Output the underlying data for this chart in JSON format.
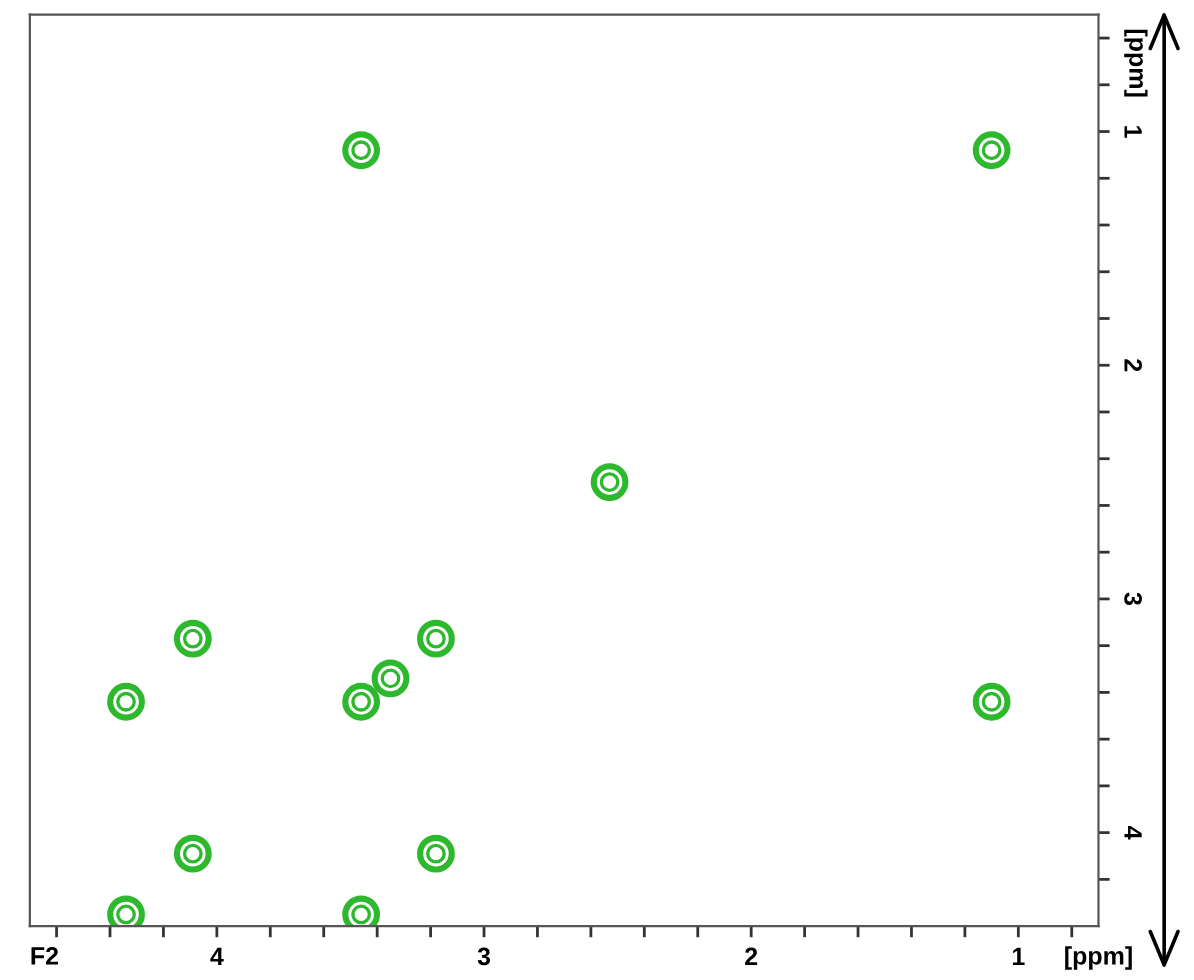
{
  "chart_data": {
    "type": "scatter",
    "xlabel": "[ppm]",
    "ylabel": "[ppm]",
    "annotations": [
      "F2"
    ],
    "x": [
      3.46,
      1.1,
      2.53,
      4.09,
      3.18,
      3.35,
      4.34,
      3.46,
      1.1,
      4.09,
      3.18,
      4.34,
      3.46
    ],
    "series": [
      {
        "color": "#2eb82e",
        "values": [
          1.08,
          1.08,
          2.5,
          3.17,
          3.17,
          3.34,
          3.44,
          3.44,
          3.44,
          4.09,
          4.09,
          4.35,
          4.35
        ]
      }
    ],
    "xlim": [
      4.7,
      0.7
    ],
    "ylim": [
      4.4,
      0.5
    ],
    "xticks": [
      {
        "value": 4.6,
        "label": null
      },
      {
        "value": 4.4,
        "label": null
      },
      {
        "value": 4.2,
        "label": null
      },
      4,
      {
        "value": 3.8,
        "label": null
      },
      {
        "value": 3.6,
        "label": null
      },
      {
        "value": 3.4,
        "label": null
      },
      {
        "value": 3.2,
        "label": null
      },
      3,
      {
        "value": 2.8,
        "label": null
      },
      {
        "value": 2.6,
        "label": null
      },
      {
        "value": 2.4,
        "label": null
      },
      {
        "value": 2.2,
        "label": null
      },
      2,
      {
        "value": 1.8,
        "label": null
      },
      {
        "value": 1.6,
        "label": null
      },
      {
        "value": 1.4,
        "label": null
      },
      {
        "value": 1.2,
        "label": null
      },
      1,
      {
        "value": 0.8,
        "label": null
      }
    ],
    "yticks": [
      {
        "value": 0.6,
        "label": null
      },
      {
        "value": 0.8,
        "label": null
      },
      1,
      {
        "value": 1.2,
        "label": null
      },
      {
        "value": 1.4,
        "label": null
      },
      {
        "value": 1.6,
        "label": null
      },
      {
        "value": 1.8,
        "label": null
      },
      2,
      {
        "value": 2.2,
        "label": null
      },
      {
        "value": 2.4,
        "label": null
      },
      {
        "value": 2.6,
        "label": null
      },
      {
        "value": 2.8,
        "label": null
      },
      3,
      {
        "value": 3.2,
        "label": null
      },
      {
        "value": 3.4,
        "label": null
      },
      {
        "value": 3.6,
        "label": null
      },
      {
        "value": 3.8,
        "label": null
      },
      4,
      {
        "value": 4.2,
        "label": null
      }
    ],
    "grid": false,
    "marker": "circle"
  }
}
